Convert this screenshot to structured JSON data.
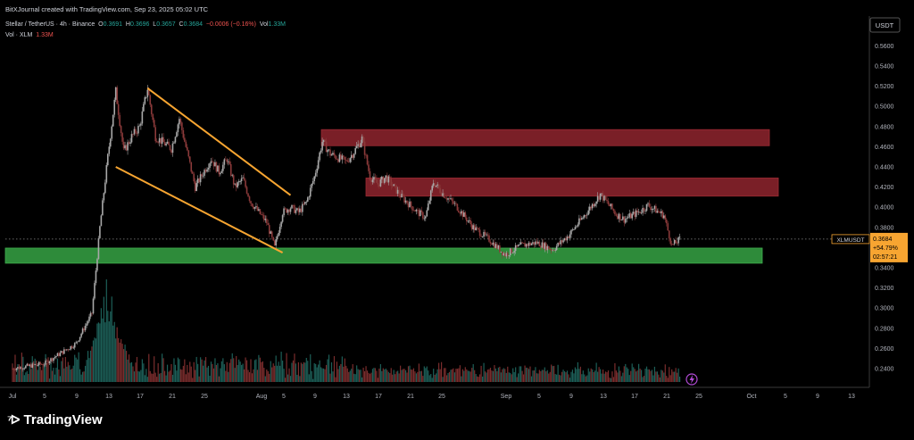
{
  "header": {
    "attribution": "BitXJournal created with TradingView.com, Sep 23, 2025 05:02 UTC"
  },
  "legend": {
    "symbol_line": "Stellar / TetherUS · 4h · Binance",
    "ohlc": {
      "o_label": "O",
      "o": "0.3691",
      "h_label": "H",
      "h": "0.3696",
      "l_label": "L",
      "l": "0.3657",
      "c_label": "C",
      "c": "0.3684",
      "change": "−0.0006 (−0.16%)",
      "vol_label": "Vol",
      "vol": "1.33M"
    },
    "volume_line": "Vol · XLM",
    "volume_value": "1.33M"
  },
  "price_axis": {
    "currency": "USDT",
    "ticks": [
      "0.5600",
      "0.5400",
      "0.5200",
      "0.5000",
      "0.4800",
      "0.4600",
      "0.4400",
      "0.4200",
      "0.4000",
      "0.3800",
      "0.3600",
      "0.3400",
      "0.3200",
      "0.3000",
      "0.2800",
      "0.2600",
      "0.2400"
    ],
    "tag_symbol": "XLMUSDT",
    "tag_price": "0.3684",
    "tag_change": "+54.79%",
    "tag_countdown": "02:57:21"
  },
  "time_axis": {
    "labels": [
      "Jul",
      "5",
      "9",
      "13",
      "17",
      "21",
      "25",
      "Aug",
      "5",
      "9",
      "13",
      "17",
      "21",
      "25",
      "Sep",
      "5",
      "9",
      "13",
      "17",
      "21",
      "25",
      "Oct",
      "5",
      "9",
      "13"
    ]
  },
  "branding": {
    "logo_text": "TradingView"
  },
  "colors": {
    "bull": "#26a69a",
    "bear": "#ef5350",
    "resistance_zone": "#7a1f27",
    "support_zone": "#2e8b3a",
    "wedge_lines": "#f7a531",
    "price_tag": "#f7a531"
  },
  "chart_data": {
    "type": "candlestick",
    "symbol": "XLMUSDT",
    "interval": "4h",
    "ylim": [
      0.23,
      0.57
    ],
    "last_price": 0.3684,
    "path": [
      [
        "Jul 1",
        0.24
      ],
      [
        "Jul 5",
        0.245
      ],
      [
        "Jul 9",
        0.265
      ],
      [
        "Jul 11",
        0.295
      ],
      [
        "Jul 12",
        0.38
      ],
      [
        "Jul 13",
        0.45
      ],
      [
        "Jul 14",
        0.515
      ],
      [
        "Jul 15",
        0.455
      ],
      [
        "Jul 16",
        0.47
      ],
      [
        "Jul 17",
        0.48
      ],
      [
        "Jul 18",
        0.518
      ],
      [
        "Jul 19",
        0.47
      ],
      [
        "Jul 21",
        0.458
      ],
      [
        "Jul 22",
        0.488
      ],
      [
        "Jul 24",
        0.42
      ],
      [
        "Jul 26",
        0.448
      ],
      [
        "Jul 27",
        0.435
      ],
      [
        "Jul 28",
        0.448
      ],
      [
        "Jul 29",
        0.42
      ],
      [
        "Jul 30",
        0.428
      ],
      [
        "Jul 31",
        0.405
      ],
      [
        "Aug 2",
        0.385
      ],
      [
        "Aug 3",
        0.36
      ],
      [
        "Aug 4",
        0.395
      ],
      [
        "Aug 5",
        0.4
      ],
      [
        "Aug 6",
        0.395
      ],
      [
        "Aug 7",
        0.405
      ],
      [
        "Aug 8",
        0.43
      ],
      [
        "Aug 9",
        0.465
      ],
      [
        "Aug 10",
        0.453
      ],
      [
        "Aug 12",
        0.445
      ],
      [
        "Aug 13",
        0.455
      ],
      [
        "Aug 14",
        0.468
      ],
      [
        "Aug 15",
        0.43
      ],
      [
        "Aug 16",
        0.423
      ],
      [
        "Aug 17",
        0.43
      ],
      [
        "Aug 19",
        0.41
      ],
      [
        "Aug 21",
        0.395
      ],
      [
        "Aug 22",
        0.39
      ],
      [
        "Aug 23",
        0.425
      ],
      [
        "Aug 24",
        0.415
      ],
      [
        "Aug 26",
        0.4
      ],
      [
        "Aug 28",
        0.38
      ],
      [
        "Aug 30",
        0.368
      ],
      [
        "Sep 1",
        0.353
      ],
      [
        "Sep 3",
        0.362
      ],
      [
        "Sep 5",
        0.365
      ],
      [
        "Sep 7",
        0.358
      ],
      [
        "Sep 9",
        0.372
      ],
      [
        "Sep 11",
        0.392
      ],
      [
        "Sep 13",
        0.413
      ],
      [
        "Sep 15",
        0.393
      ],
      [
        "Sep 16",
        0.388
      ],
      [
        "Sep 18",
        0.396
      ],
      [
        "Sep 19",
        0.402
      ],
      [
        "Sep 21",
        0.392
      ],
      [
        "Sep 22",
        0.362
      ],
      [
        "Sep 23",
        0.368
      ]
    ],
    "zones": [
      {
        "x_start": "Aug 8",
        "x_end": "Oct 1",
        "y_low": 0.461,
        "y_high": 0.477
      },
      {
        "x_start": "Aug 15",
        "x_end": "Oct 2",
        "y_low": 0.411,
        "y_high": 0.429
      },
      {
        "x_start": "Jul 1",
        "x_end": "Oct 2",
        "y_low": 0.3445,
        "y_high": 0.3595
      }
    ],
    "trendlines": [
      {
        "from": [
          "Jul 18",
          0.518
        ],
        "to": [
          "Aug 5",
          0.412
        ]
      },
      {
        "from": [
          "Jul 14",
          0.44
        ],
        "to": [
          "Aug 4",
          0.355
        ]
      }
    ],
    "current_price_line": 0.3684,
    "volume_peak_date": "Jul 13"
  }
}
